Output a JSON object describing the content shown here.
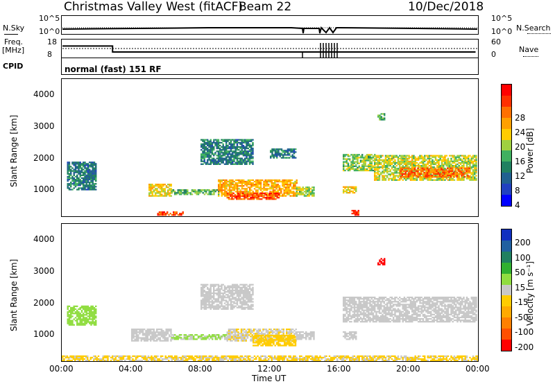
{
  "header": {
    "title": "Christmas Valley West (fitACF)",
    "beam": "Beam 22",
    "date": "10/Dec/2018"
  },
  "params": {
    "nsky_label": "N.Sky",
    "nsearch_label": "N.Search",
    "freq_label": "Freq.",
    "freq_unit": "[MHz]",
    "nave_label": "Nave",
    "cpid_label": "CPID",
    "cpid_value": "normal (fast) 151 RF",
    "noise_ticks": [
      "10^5",
      "10^0"
    ],
    "freq_ticks": [
      "18",
      "8"
    ],
    "nave_ticks": [
      "60",
      "0"
    ],
    "freq_mhz": [
      {
        "t": 0,
        "v": 14.5
      },
      {
        "t": 2.9,
        "v": 14.5
      },
      {
        "t": 2.9,
        "v": 10.9
      },
      {
        "t": 23.9,
        "v": 10.9
      }
    ],
    "freq_gap_hours": [
      13.8,
      16.1
    ]
  },
  "x_axis": {
    "label": "Time UT",
    "ticks": [
      "00:00",
      "04:00",
      "08:00",
      "12:00",
      "16:00",
      "20:00",
      "00:00"
    ]
  },
  "power_panel": {
    "ylabel": "Slant Range [km]",
    "yticks": [
      "4000",
      "3000",
      "2000",
      "1000"
    ],
    "colorbar_label": "Power [dB]",
    "colorbar_ticks": [
      "28",
      "24",
      "20",
      "16",
      "12",
      "8",
      "4"
    ],
    "colors": [
      "#ff0000",
      "#ff3000",
      "#ff7000",
      "#ffa000",
      "#ffcc00",
      "#a0d040",
      "#40b060",
      "#208060",
      "#206090",
      "#2040c0",
      "#0000ff"
    ]
  },
  "velocity_panel": {
    "ylabel": "Slant Range [km]",
    "yticks": [
      "4000",
      "3000",
      "2000",
      "1000"
    ],
    "colorbar_label": "Velocity [m s⁻¹]",
    "colorbar_ticks": [
      "200",
      "100",
      "50",
      "15",
      "-15",
      "-50",
      "-100",
      "-200"
    ],
    "colors": [
      "#1030c0",
      "#2060a0",
      "#208060",
      "#30b030",
      "#90dd40",
      "#c8c8c8",
      "#ffcc00",
      "#ffaa00",
      "#ff8000",
      "#ff5000",
      "#ff0000"
    ]
  },
  "chart_data": {
    "type": "heatmap",
    "x_range_hours": [
      0,
      24
    ],
    "y_range_km": [
      180,
      4500
    ],
    "power_regions_db": [
      {
        "t0": 0.3,
        "t1": 2.0,
        "r0": 1000,
        "r1": 1900,
        "db": 8
      },
      {
        "t0": 5.0,
        "t1": 6.3,
        "r0": 800,
        "r1": 1200,
        "db": 18
      },
      {
        "t0": 6.3,
        "t1": 9.0,
        "r0": 850,
        "r1": 1000,
        "db": 12
      },
      {
        "t0": 9.0,
        "t1": 13.5,
        "r0": 800,
        "r1": 1300,
        "db": 20
      },
      {
        "t0": 9.5,
        "t1": 12.5,
        "r0": 700,
        "r1": 900,
        "db": 26
      },
      {
        "t0": 5.5,
        "t1": 7.0,
        "r0": 200,
        "r1": 320,
        "db": 26
      },
      {
        "t0": 8.0,
        "t1": 11.0,
        "r0": 1800,
        "r1": 2600,
        "db": 8
      },
      {
        "t0": 12.0,
        "t1": 13.5,
        "r0": 2000,
        "r1": 2300,
        "db": 8
      },
      {
        "t0": 13.5,
        "t1": 14.5,
        "r0": 800,
        "r1": 1100,
        "db": 14
      },
      {
        "t0": 16.2,
        "t1": 17.0,
        "r0": 900,
        "r1": 1100,
        "db": 18
      },
      {
        "t0": 16.2,
        "t1": 18.0,
        "r0": 1600,
        "r1": 2100,
        "db": 14
      },
      {
        "t0": 18.0,
        "t1": 23.9,
        "r0": 1300,
        "r1": 2100,
        "db": 16
      },
      {
        "t0": 19.5,
        "t1": 23.5,
        "r0": 1400,
        "r1": 1700,
        "db": 24
      },
      {
        "t0": 16.7,
        "t1": 17.1,
        "r0": 200,
        "r1": 350,
        "db": 28
      },
      {
        "t0": 18.2,
        "t1": 18.6,
        "r0": 3200,
        "r1": 3400,
        "db": 12
      }
    ],
    "velocity_regions_ms": [
      {
        "t0": 0.3,
        "t1": 2.0,
        "r0": 1300,
        "r1": 1900,
        "v": 50
      },
      {
        "t0": 4.0,
        "t1": 6.3,
        "r0": 800,
        "r1": 1200,
        "v": 0
      },
      {
        "t0": 6.3,
        "t1": 9.5,
        "r0": 850,
        "r1": 1000,
        "v": 30
      },
      {
        "t0": 9.5,
        "t1": 13.5,
        "r0": 800,
        "r1": 1200,
        "v": -20
      },
      {
        "t0": 11.0,
        "t1": 13.5,
        "r0": 650,
        "r1": 1000,
        "v": -40
      },
      {
        "t0": 8.0,
        "t1": 11.0,
        "r0": 1800,
        "r1": 2600,
        "v": 0
      },
      {
        "t0": 13.5,
        "t1": 14.5,
        "r0": 850,
        "r1": 1100,
        "v": 0
      },
      {
        "t0": 16.2,
        "t1": 17.0,
        "r0": 850,
        "r1": 1100,
        "v": 0
      },
      {
        "t0": 16.2,
        "t1": 23.9,
        "r0": 1400,
        "r1": 2200,
        "v": 0
      },
      {
        "t0": 18.2,
        "t1": 18.6,
        "r0": 3200,
        "r1": 3400,
        "v": -250
      },
      {
        "t0": 0.0,
        "t1": 24.0,
        "r0": 180,
        "r1": 330,
        "v": -30
      }
    ]
  }
}
